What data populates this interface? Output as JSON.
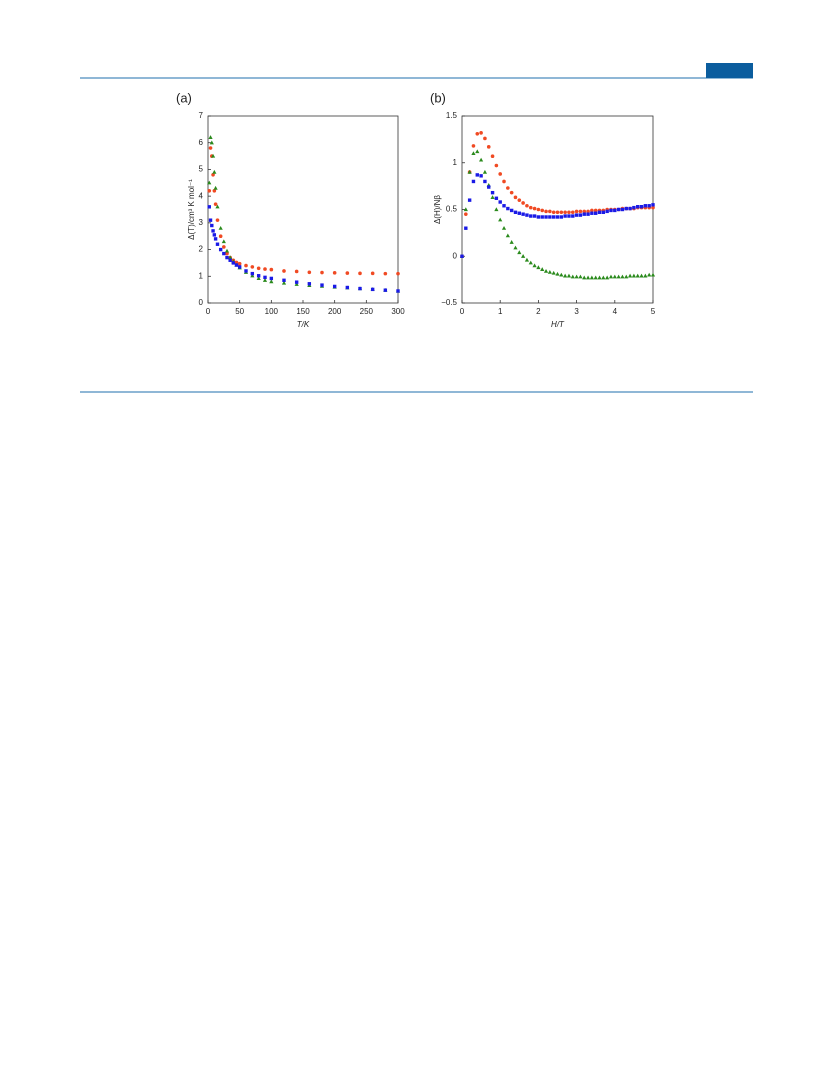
{
  "chart_data": [
    {
      "type": "scatter",
      "label": "(a)",
      "xlabel": "T/K",
      "ylabel": "Δ(T)/cm³ K mol⁻¹",
      "xlim": [
        0,
        300
      ],
      "ylim": [
        0,
        7
      ],
      "xticks": [
        0,
        50,
        100,
        150,
        200,
        250,
        300
      ],
      "yticks": [
        0,
        1,
        2,
        3,
        4,
        5,
        6,
        7
      ],
      "x": [
        2,
        4,
        6,
        8,
        10,
        12,
        15,
        20,
        25,
        30,
        35,
        40,
        45,
        50,
        60,
        70,
        80,
        90,
        100,
        120,
        140,
        160,
        180,
        200,
        220,
        240,
        260,
        280,
        300
      ],
      "series": [
        {
          "color": "#f04a23",
          "marker": "circle",
          "values": [
            4.2,
            5.8,
            5.5,
            4.8,
            4.2,
            3.7,
            3.1,
            2.5,
            2.1,
            1.85,
            1.7,
            1.6,
            1.52,
            1.47,
            1.4,
            1.35,
            1.3,
            1.27,
            1.25,
            1.2,
            1.18,
            1.15,
            1.14,
            1.13,
            1.12,
            1.11,
            1.11,
            1.1,
            1.1
          ]
        },
        {
          "color": "#2a8a1c",
          "marker": "triangle",
          "values": [
            4.5,
            6.2,
            6.0,
            5.5,
            4.9,
            4.3,
            3.6,
            2.8,
            2.3,
            1.95,
            1.7,
            1.55,
            1.42,
            1.32,
            1.15,
            1.02,
            0.92,
            0.85,
            0.8,
            0.75,
            0.7,
            0.66,
            0.63,
            0.6,
            0.57,
            0.54,
            0.51,
            0.48,
            0.45
          ]
        },
        {
          "color": "#1a1ae6",
          "marker": "square",
          "values": [
            3.6,
            3.1,
            2.9,
            2.7,
            2.55,
            2.4,
            2.2,
            2.0,
            1.85,
            1.7,
            1.6,
            1.5,
            1.42,
            1.35,
            1.2,
            1.1,
            1.02,
            0.96,
            0.92,
            0.85,
            0.78,
            0.72,
            0.67,
            0.62,
            0.58,
            0.54,
            0.51,
            0.48,
            0.45
          ]
        }
      ]
    },
    {
      "type": "scatter",
      "label": "(b)",
      "xlabel": "H/T",
      "ylabel": "Δ(H)/Nβ",
      "xlim": [
        0,
        5
      ],
      "ylim": [
        -0.5,
        1.5
      ],
      "xticks": [
        0,
        1,
        2,
        3,
        4,
        5
      ],
      "yticks": [
        {
          "value": -0.5,
          "label": "−0.5"
        },
        0,
        0.5,
        1,
        1.5
      ],
      "x": [
        0,
        0.1,
        0.2,
        0.3,
        0.4,
        0.5,
        0.6,
        0.7,
        0.8,
        0.9,
        1.0,
        1.1,
        1.2,
        1.3,
        1.4,
        1.5,
        1.6,
        1.7,
        1.8,
        1.9,
        2.0,
        2.1,
        2.2,
        2.3,
        2.4,
        2.5,
        2.6,
        2.7,
        2.8,
        2.9,
        3.0,
        3.1,
        3.2,
        3.3,
        3.4,
        3.5,
        3.6,
        3.7,
        3.8,
        3.9,
        4.0,
        4.1,
        4.2,
        4.3,
        4.4,
        4.5,
        4.6,
        4.7,
        4.8,
        4.9,
        5.0
      ],
      "series": [
        {
          "color": "#f04a23",
          "marker": "circle",
          "values": [
            0,
            0.45,
            0.9,
            1.18,
            1.31,
            1.32,
            1.26,
            1.17,
            1.07,
            0.97,
            0.88,
            0.8,
            0.73,
            0.68,
            0.63,
            0.6,
            0.57,
            0.54,
            0.52,
            0.51,
            0.5,
            0.49,
            0.48,
            0.48,
            0.47,
            0.47,
            0.47,
            0.47,
            0.47,
            0.47,
            0.48,
            0.48,
            0.48,
            0.48,
            0.49,
            0.49,
            0.49,
            0.49,
            0.5,
            0.5,
            0.5,
            0.5,
            0.51,
            0.51,
            0.51,
            0.51,
            0.52,
            0.52,
            0.52,
            0.52,
            0.52
          ]
        },
        {
          "color": "#2a8a1c",
          "marker": "triangle",
          "values": [
            0,
            0.5,
            0.9,
            1.1,
            1.12,
            1.03,
            0.9,
            0.76,
            0.63,
            0.5,
            0.39,
            0.3,
            0.22,
            0.15,
            0.09,
            0.04,
            0,
            -0.04,
            -0.07,
            -0.1,
            -0.12,
            -0.14,
            -0.16,
            -0.17,
            -0.18,
            -0.19,
            -0.2,
            -0.21,
            -0.21,
            -0.22,
            -0.22,
            -0.22,
            -0.23,
            -0.23,
            -0.23,
            -0.23,
            -0.23,
            -0.23,
            -0.23,
            -0.22,
            -0.22,
            -0.22,
            -0.22,
            -0.22,
            -0.21,
            -0.21,
            -0.21,
            -0.21,
            -0.21,
            -0.2,
            -0.2
          ]
        },
        {
          "color": "#1a1ae6",
          "marker": "square",
          "values": [
            0,
            0.3,
            0.6,
            0.8,
            0.87,
            0.86,
            0.8,
            0.74,
            0.68,
            0.62,
            0.58,
            0.54,
            0.51,
            0.49,
            0.47,
            0.46,
            0.45,
            0.44,
            0.43,
            0.43,
            0.42,
            0.42,
            0.42,
            0.42,
            0.42,
            0.42,
            0.42,
            0.43,
            0.43,
            0.43,
            0.44,
            0.44,
            0.45,
            0.45,
            0.46,
            0.46,
            0.47,
            0.47,
            0.48,
            0.49,
            0.49,
            0.5,
            0.5,
            0.51,
            0.51,
            0.52,
            0.53,
            0.53,
            0.54,
            0.54,
            0.55
          ]
        }
      ]
    }
  ]
}
